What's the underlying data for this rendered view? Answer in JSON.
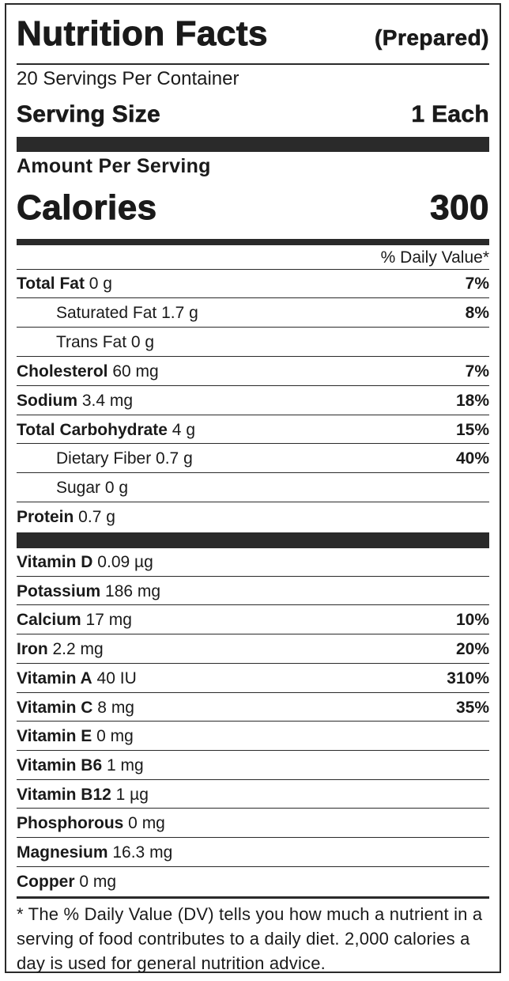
{
  "title": "Nutrition Facts",
  "title_suffix": "(Prepared)",
  "servings_per_container": "20 Servings Per Container",
  "serving_size": {
    "label": "Serving Size",
    "value": "1 Each"
  },
  "amount_per_serving": "Amount Per Serving",
  "calories": {
    "label": "Calories",
    "value": "300"
  },
  "daily_value_header": "% Daily Value*",
  "nutrients": [
    {
      "name": "Total Fat",
      "amount": " 0 g",
      "pct": "7%",
      "sub": false
    },
    {
      "name": "Saturated Fat",
      "amount": " 1.7 g",
      "pct": "8%",
      "sub": true
    },
    {
      "name": "Trans Fat",
      "amount": " 0 g",
      "pct": "",
      "sub": true
    },
    {
      "name": "Cholesterol",
      "amount": " 60 mg",
      "pct": "7%",
      "sub": false
    },
    {
      "name": "Sodium",
      "amount": " 3.4 mg",
      "pct": "18%",
      "sub": false
    },
    {
      "name": "Total Carbohydrate",
      "amount": " 4 g",
      "pct": "15%",
      "sub": false
    },
    {
      "name": "Dietary Fiber",
      "amount": " 0.7 g",
      "pct": "40%",
      "sub": true
    },
    {
      "name": "Sugar",
      "amount": " 0 g",
      "pct": "",
      "sub": true
    },
    {
      "name": "Protein",
      "amount": " 0.7 g",
      "pct": "",
      "sub": false
    }
  ],
  "vitamins": [
    {
      "name": "Vitamin D",
      "amount": " 0.09 µg",
      "pct": ""
    },
    {
      "name": "Potassium",
      "amount": " 186 mg",
      "pct": ""
    },
    {
      "name": "Calcium",
      "amount": " 17 mg",
      "pct": "10%"
    },
    {
      "name": "Iron",
      "amount": " 2.2 mg",
      "pct": "20%"
    },
    {
      "name": "Vitamin A",
      "amount": " 40 IU",
      "pct": "310%"
    },
    {
      "name": "Vitamin C",
      "amount": " 8 mg",
      "pct": "35%"
    },
    {
      "name": "Vitamin E",
      "amount": " 0 mg",
      "pct": ""
    },
    {
      "name": "Vitamin B6",
      "amount": " 1 mg",
      "pct": ""
    },
    {
      "name": "Vitamin B12",
      "amount": " 1 µg",
      "pct": ""
    },
    {
      "name": "Phosphorous",
      "amount": " 0 mg",
      "pct": ""
    },
    {
      "name": "Magnesium",
      "amount": " 16.3 mg",
      "pct": ""
    },
    {
      "name": "Copper",
      "amount": " 0 mg",
      "pct": ""
    }
  ],
  "footnote": "* The % Daily Value (DV) tells you how much a nutrient in a serving of food contributes to a daily diet. 2,000 calories a day is used for general nutrition advice."
}
